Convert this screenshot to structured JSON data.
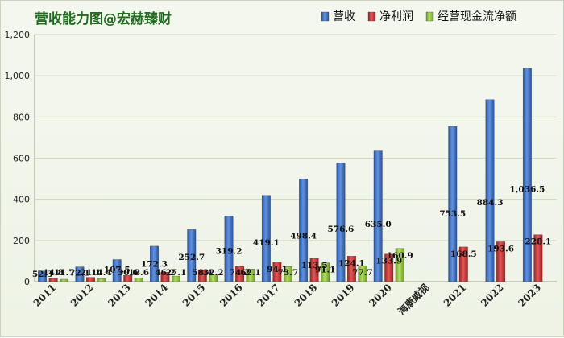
{
  "chart_data": {
    "type": "bar",
    "title": "营收能力图@宏赫臻财",
    "categories": [
      "2011",
      "2012",
      "2013",
      "2014",
      "2015",
      "2016",
      "2017",
      "2018",
      "2019",
      "2020",
      "海康威视",
      "2021",
      "2022",
      "2023"
    ],
    "ylim": [
      0,
      1200
    ],
    "yticks": [
      "0",
      "200",
      "400",
      "600",
      "800",
      "1,000",
      "1,200"
    ],
    "grid": true,
    "legend_position": "top-right",
    "series": [
      {
        "name": "营收",
        "color": "#3b6fc4",
        "values": [
          52.3,
          72.1,
          107.5,
          172.3,
          252.7,
          319.2,
          419.1,
          498.4,
          576.6,
          635.0,
          null,
          753.5,
          884.3,
          1036.5
        ],
        "labels": [
          "52.3",
          "72.1",
          "107.5",
          "172.3",
          "252.7",
          "319.2",
          "419.1",
          "498.4",
          "576.6",
          "635.0",
          "",
          "753.5",
          "884.3",
          "1,036.5"
        ]
      },
      {
        "name": "净利润",
        "color": "#c83232",
        "values": [
          14.8,
          21.1,
          30.6,
          46.2,
          58.4,
          74.2,
          94.1,
          113.5,
          124.1,
          133.9,
          null,
          168.5,
          193.6,
          228.1
        ],
        "labels": [
          "14.8",
          "21.1",
          "30.6",
          "46.2",
          "58.4",
          "74.2",
          "94.1",
          "113.5",
          "124.1",
          "133.9",
          "",
          "168.5",
          "193.6",
          "228.1"
        ]
      },
      {
        "name": "经营现金流净额",
        "color": "#8cbf3a",
        "values": [
          11.7,
          14.4,
          18.6,
          27.1,
          32.2,
          62.1,
          73.7,
          91.1,
          77.7,
          160.9,
          null,
          null,
          null,
          null
        ],
        "labels": [
          "11.7",
          "14.4",
          "18.6",
          "27.1",
          "32.2",
          "62.1",
          "73.7",
          "91.1",
          "77.7",
          "160.9",
          "",
          "",
          "",
          ""
        ]
      }
    ]
  }
}
